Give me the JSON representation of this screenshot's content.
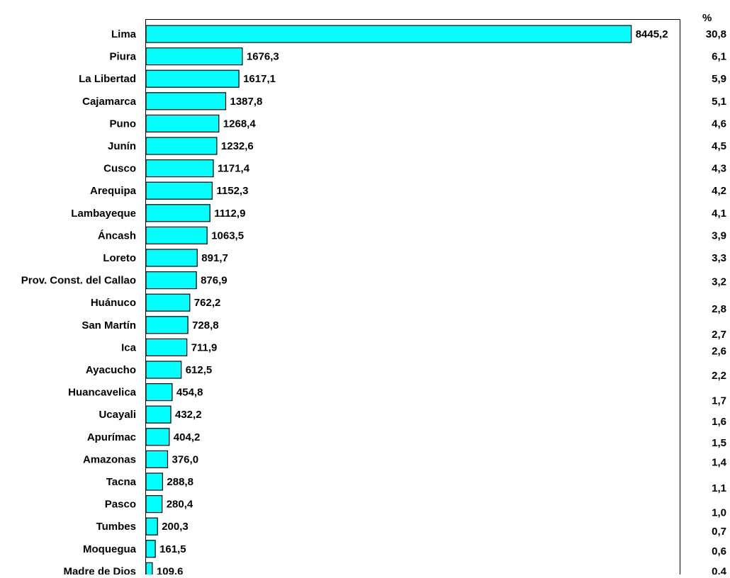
{
  "chart_data": {
    "type": "bar",
    "orientation": "horizontal",
    "title": "",
    "xlabel": "",
    "ylabel": "",
    "xlim": [
      0,
      9300
    ],
    "grid": false,
    "legend": "none",
    "bar_color": "#00FFFF",
    "bar_edge_color": "#000000",
    "percent_header": "%",
    "categories": [
      "Lima",
      "Piura",
      "La Libertad",
      "Cajamarca",
      "Puno",
      "Junín",
      "Cusco",
      "Arequipa",
      "Lambayeque",
      "Áncash",
      "Loreto",
      "Prov. Const. del Callao",
      "Huánuco",
      "San Martín",
      "Ica",
      "Ayacucho",
      "Huancavelica",
      "Ucayali",
      "Apurímac",
      "Amazonas",
      "Tacna",
      "Pasco",
      "Tumbes",
      "Moquegua",
      "Madre de Dios"
    ],
    "values": [
      8445.2,
      1676.3,
      1617.1,
      1387.8,
      1268.4,
      1232.6,
      1171.4,
      1152.3,
      1112.9,
      1063.5,
      891.7,
      876.9,
      762.2,
      728.8,
      711.9,
      612.5,
      454.8,
      432.2,
      404.2,
      376.0,
      288.8,
      280.4,
      200.3,
      161.5,
      109.6
    ],
    "value_labels": [
      "8445,2",
      "1676,3",
      "1617,1",
      "1387,8",
      "1268,4",
      "1232,6",
      "1171,4",
      "1152,3",
      "1112,9",
      "1063,5",
      "891,7",
      "876,9",
      "762,2",
      "728,8",
      "711,9",
      "612,5",
      "454,8",
      "432,2",
      "404,2",
      "376,0",
      "288,8",
      "280,4",
      "200,3",
      "161,5",
      "109,6"
    ],
    "percent_labels": [
      "30,8",
      "6,1",
      "5,9",
      "5,1",
      "4,6",
      "4,5",
      "4,3",
      "4,2",
      "4,1",
      "3,9",
      "3,3",
      "3,2",
      "2,8",
      "2,7",
      "2,6",
      "2,2",
      "1,7",
      "1,6",
      "1,5",
      "1,4",
      "1,1",
      "1,0",
      "0,7",
      "0,6",
      "0,4"
    ]
  }
}
